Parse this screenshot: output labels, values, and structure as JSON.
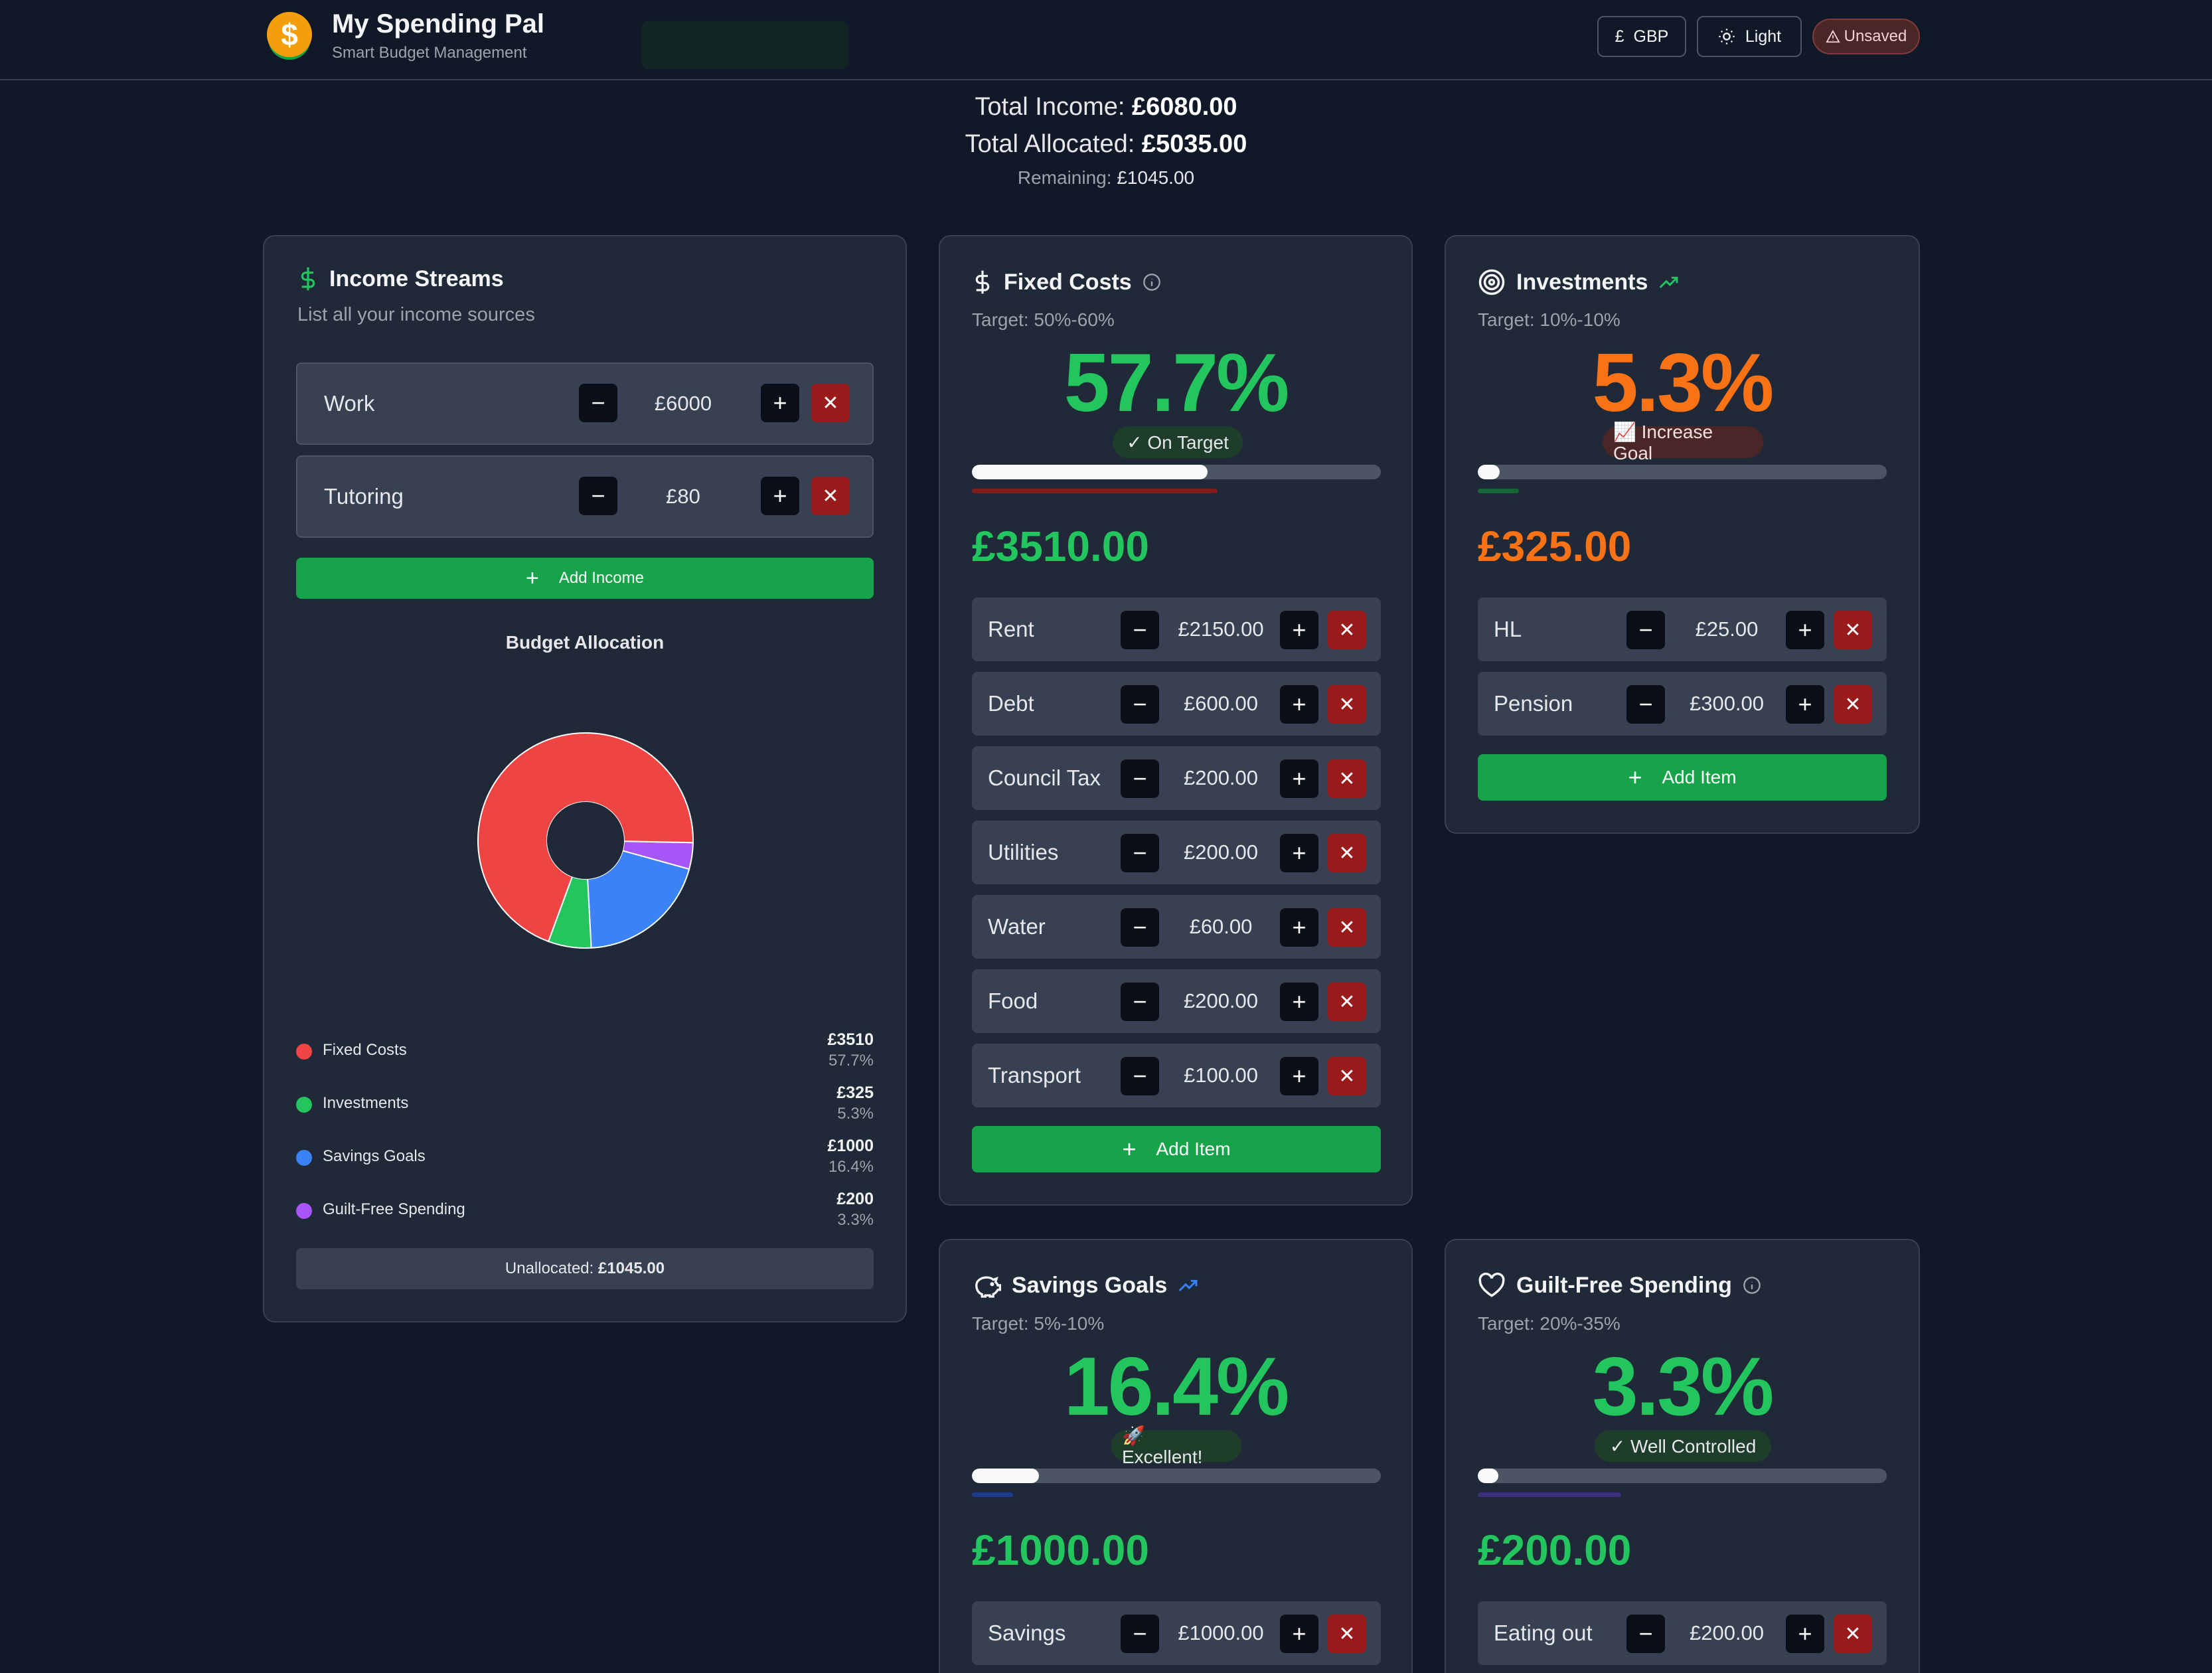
{
  "header": {
    "logo_symbol": "$",
    "title": "My Spending Pal",
    "subtitle": "Smart Budget Management",
    "currency_button": {
      "symbol": "£",
      "label": "GBP"
    },
    "theme_button": {
      "icon": "sun-icon",
      "label": "Light"
    },
    "status_badge": {
      "icon": "warning-icon",
      "label": "Unsaved"
    }
  },
  "summary": {
    "income_label": "Total Income:",
    "income_value": "£6080.00",
    "allocated_label": "Total Allocated:",
    "allocated_value": "£5035.00",
    "remaining_label": "Remaining:",
    "remaining_value": "£1045.00"
  },
  "income": {
    "title": "Income Streams",
    "icon": "dollar-icon",
    "subtitle": "List all your income sources",
    "items": [
      {
        "label": "Work",
        "value": "£6000"
      },
      {
        "label": "Tutoring",
        "value": "£80"
      }
    ],
    "add_label": "Add Income",
    "chart_title": "Budget Allocation",
    "unallocated_label": "Unallocated:",
    "unallocated_value": "£1045.00"
  },
  "chart_data": {
    "type": "pie",
    "title": "Budget Allocation",
    "slices": [
      {
        "name": "Fixed Costs",
        "value": 3510,
        "pct_label": "57.7%",
        "amount_label": "£3510",
        "color": "#ef4444"
      },
      {
        "name": "Investments",
        "value": 325,
        "pct_label": "5.3%",
        "amount_label": "£325",
        "color": "#22c55e"
      },
      {
        "name": "Savings Goals",
        "value": 1000,
        "pct_label": "16.4%",
        "amount_label": "£1000",
        "color": "#3b82f6"
      },
      {
        "name": "Guilt-Free Spending",
        "value": 200,
        "pct_label": "3.3%",
        "amount_label": "£200",
        "color": "#a855f7"
      }
    ],
    "donut": true,
    "legend": "below"
  },
  "fixed": {
    "title": "Fixed Costs",
    "icon": "dollar-icon",
    "info_icon": "info-icon",
    "target": "Target: 50%-60%",
    "pct": "57.7%",
    "pct_color": "#22c55e",
    "badge": "✓ On Target",
    "progress": 0.577,
    "amount": "£3510.00",
    "items": [
      {
        "label": "Rent",
        "value": "£2150.00"
      },
      {
        "label": "Debt",
        "value": "£600.00"
      },
      {
        "label": "Council Tax",
        "value": "£200.00"
      },
      {
        "label": "Utilities",
        "value": "£200.00"
      },
      {
        "label": "Water",
        "value": "£60.00"
      },
      {
        "label": "Food",
        "value": "£200.00"
      },
      {
        "label": "Transport",
        "value": "£100.00"
      }
    ],
    "add_label": "Add Item"
  },
  "investments": {
    "title": "Investments",
    "icon": "target-icon",
    "trend_icon": "trending-up-icon",
    "target": "Target: 10%-10%",
    "pct": "5.3%",
    "pct_color": "#f97316",
    "badge": "📈 Increase Goal",
    "progress": 0.053,
    "amount": "£325.00",
    "items": [
      {
        "label": "HL",
        "value": "£25.00"
      },
      {
        "label": "Pension",
        "value": "£300.00"
      }
    ],
    "add_label": "Add Item"
  },
  "savings": {
    "title": "Savings Goals",
    "icon": "piggy-bank-icon",
    "trend_icon": "trending-up-icon",
    "target": "Target: 5%-10%",
    "pct": "16.4%",
    "pct_color": "#22c55e",
    "badge": "🚀 Excellent!",
    "progress": 0.164,
    "amount": "£1000.00",
    "items": [
      {
        "label": "Savings",
        "value": "£1000.00"
      }
    ]
  },
  "guiltfree": {
    "title": "Guilt-Free Spending",
    "icon": "heart-icon",
    "info_icon": "info-icon",
    "target": "Target: 20%-35%",
    "pct": "3.3%",
    "pct_color": "#22c55e",
    "badge": "✓ Well Controlled",
    "progress": 0.033,
    "amount": "£200.00",
    "items": [
      {
        "label": "Eating out",
        "value": "£200.00"
      }
    ]
  },
  "controls": {
    "minus": "−",
    "plus": "+",
    "remove": "✕",
    "add_icon": "+"
  }
}
